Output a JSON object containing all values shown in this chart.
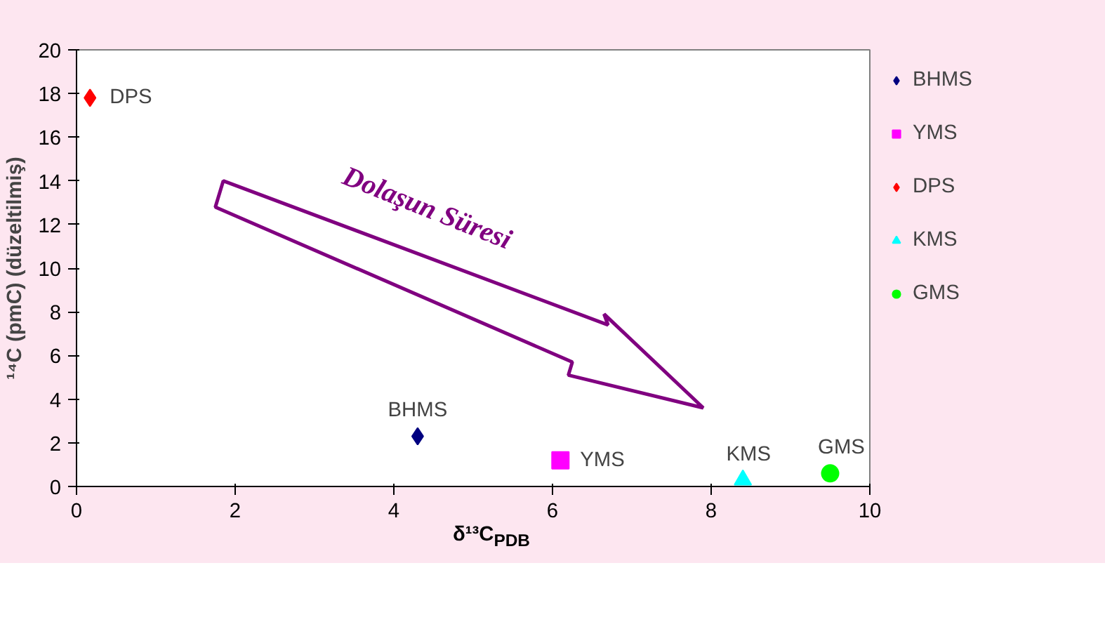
{
  "chart_data": {
    "type": "scatter",
    "xlabel": "δ¹³C$_{PDB}$",
    "ylabel": "¹⁴C (pmC) (düzeltilmiş)",
    "xlim": [
      0,
      10
    ],
    "xticks": [
      0,
      2,
      4,
      6,
      8,
      10
    ],
    "ylim": [
      0,
      20
    ],
    "yticks": [
      0,
      2,
      4,
      6,
      8,
      10,
      12,
      14,
      16,
      18,
      20
    ],
    "grid": false,
    "legend": "right",
    "annotations": [
      "Dolaşun Süresi"
    ],
    "series": [
      {
        "name": "BHMS",
        "color": "#000080",
        "marker": "diamond",
        "x": [
          4.3
        ],
        "values": [
          2.3
        ]
      },
      {
        "name": "YMS",
        "color": "#ff00ff",
        "marker": "square",
        "x": [
          6.1
        ],
        "values": [
          1.2
        ]
      },
      {
        "name": "DPS",
        "color": "#ff0000",
        "marker": "diamond",
        "x": [
          0.17
        ],
        "values": [
          17.8
        ]
      },
      {
        "name": "KMS",
        "color": "#00ffff",
        "marker": "triangle",
        "x": [
          8.4
        ],
        "values": [
          0.3
        ]
      },
      {
        "name": "GMS",
        "color": "#00ff00",
        "marker": "circle",
        "x": [
          9.5
        ],
        "values": [
          0.6
        ]
      }
    ]
  }
}
